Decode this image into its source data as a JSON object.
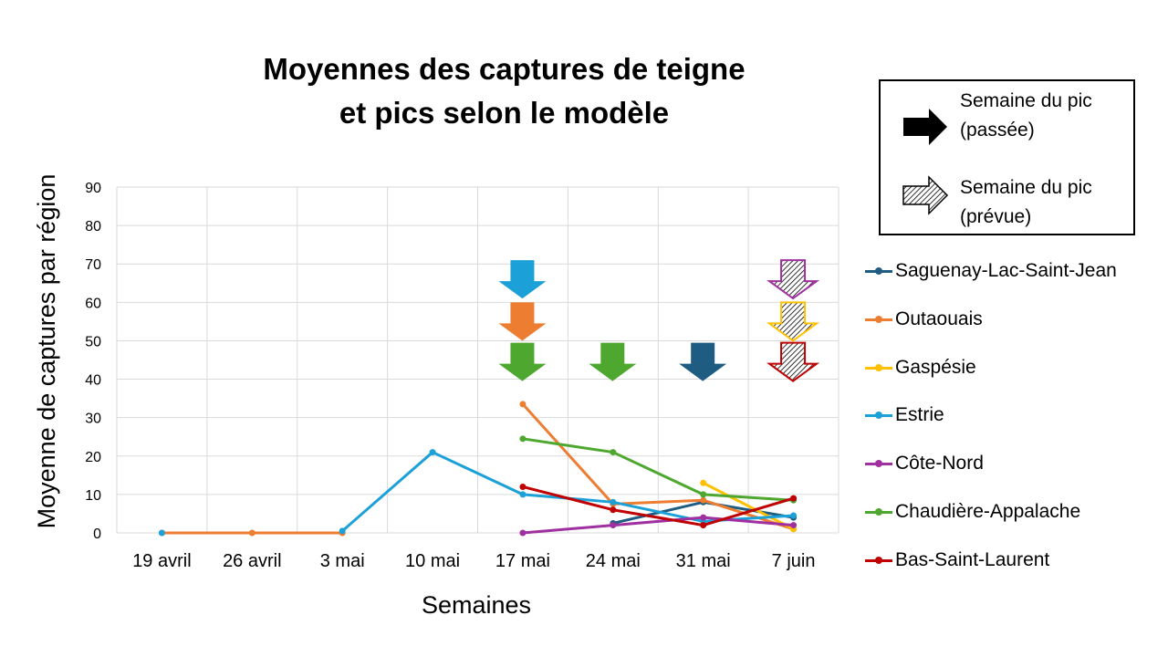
{
  "title_line1": "Moyennes des captures de teigne",
  "title_line2": "et pics selon le modèle",
  "legend_box": {
    "past_label_1": "Semaine du pic",
    "past_label_2": "(passée)",
    "future_label_1": "Semaine du pic",
    "future_label_2": "(prévue)"
  },
  "chart_data": {
    "type": "line",
    "title": "Moyennes des captures de teigne et pics selon le modèle",
    "xlabel": "Semaines",
    "ylabel": "Moyenne de captures par région",
    "categories": [
      "19 avril",
      "26 avril",
      "3 mai",
      "10 mai",
      "17 mai",
      "24 mai",
      "31 mai",
      "7 juin"
    ],
    "ylim": [
      0,
      90
    ],
    "yticks": [
      0,
      10,
      20,
      30,
      40,
      50,
      60,
      70,
      80,
      90
    ],
    "grid": true,
    "legend_position": "right",
    "series": [
      {
        "name": "Saguenay-Lac-Saint-Jean",
        "color": "#1f5c82",
        "values": [
          null,
          null,
          null,
          null,
          null,
          2.5,
          8,
          4
        ]
      },
      {
        "name": "Outaouais",
        "color": "#ed7d31",
        "values": [
          0,
          0,
          0,
          null,
          33.5,
          7.5,
          8.5,
          1
        ]
      },
      {
        "name": "Gaspésie",
        "color": "#ffc000",
        "values": [
          null,
          null,
          null,
          null,
          null,
          null,
          13,
          1
        ]
      },
      {
        "name": "Estrie",
        "color": "#1ba1d8",
        "values": [
          0,
          null,
          0.5,
          21,
          10,
          8,
          3,
          4.5
        ]
      },
      {
        "name": "Côte-Nord",
        "color": "#a030a0",
        "values": [
          null,
          null,
          null,
          null,
          0,
          2,
          4,
          2
        ]
      },
      {
        "name": "Chaudière-Appalache",
        "color": "#4ea72e",
        "values": [
          null,
          null,
          null,
          null,
          24.5,
          21,
          10,
          8.5
        ]
      },
      {
        "name": "Bas-Saint-Laurent",
        "color": "#c00000",
        "values": [
          null,
          null,
          null,
          null,
          12,
          6,
          2,
          9
        ]
      }
    ],
    "peak_arrows": [
      {
        "series": "Estrie",
        "week": "17 mai",
        "kind": "passée",
        "color": "#1ba1d8",
        "level": 66
      },
      {
        "series": "Outaouais",
        "week": "17 mai",
        "kind": "passée",
        "color": "#ed7d31",
        "level": 55
      },
      {
        "series": "Chaudière-Appalache",
        "week": "17 mai",
        "kind": "passée",
        "color": "#4ea72e",
        "level": 44.5
      },
      {
        "series": "Chaudière-Appalache",
        "week": "24 mai",
        "kind": "passée",
        "color": "#4ea72e",
        "level": 44.5
      },
      {
        "series": "Saguenay-Lac-Saint-Jean",
        "week": "31 mai",
        "kind": "passée",
        "color": "#1f5c82",
        "level": 44.5
      },
      {
        "series": "Côte-Nord",
        "week": "7 juin",
        "kind": "prévue",
        "color": "#a030a0",
        "level": 66
      },
      {
        "series": "Gaspésie",
        "week": "7 juin",
        "kind": "prévue",
        "color": "#ffc000",
        "level": 55
      },
      {
        "series": "Bas-Saint-Laurent",
        "week": "7 juin",
        "kind": "prévue",
        "color": "#c00000",
        "level": 44.5
      }
    ]
  }
}
